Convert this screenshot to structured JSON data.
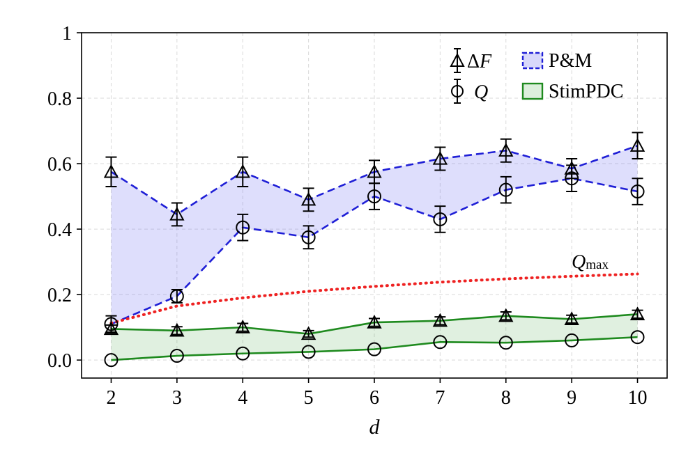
{
  "chart_data": {
    "type": "line",
    "x": [
      2,
      3,
      4,
      5,
      6,
      7,
      8,
      9,
      10
    ],
    "xlabel": "d",
    "ylabel": "",
    "xlim": [
      1.55,
      10.45
    ],
    "ylim": [
      -0.055,
      1.0
    ],
    "xticks": [
      "2",
      "3",
      "4",
      "5",
      "6",
      "7",
      "8",
      "9",
      "10"
    ],
    "yticks": [
      {
        "value": 0.0,
        "label": "0.0"
      },
      {
        "value": 0.2,
        "label": "0.2"
      },
      {
        "value": 0.4,
        "label": "0.4"
      },
      {
        "value": 0.6,
        "label": "0.6"
      },
      {
        "value": 0.8,
        "label": "0.8"
      },
      {
        "value": 1.0,
        "label": "1"
      }
    ],
    "grid": true,
    "series": [
      {
        "group": "P&M",
        "name": "ΔF",
        "marker": "triangle",
        "color": "#1f1fd6",
        "linestyle": "dashed",
        "values": [
          0.575,
          0.445,
          0.575,
          0.49,
          0.575,
          0.615,
          0.64,
          0.585,
          0.655
        ],
        "errors": [
          0.045,
          0.035,
          0.045,
          0.035,
          0.035,
          0.035,
          0.035,
          0.03,
          0.04
        ]
      },
      {
        "group": "P&M",
        "name": "Q",
        "marker": "circle",
        "color": "#1f1fd6",
        "linestyle": "dashed",
        "values": [
          0.11,
          0.195,
          0.405,
          0.375,
          0.5,
          0.43,
          0.52,
          0.555,
          0.515
        ],
        "errors": [
          0.025,
          0.02,
          0.04,
          0.035,
          0.04,
          0.04,
          0.04,
          0.04,
          0.04
        ]
      },
      {
        "group": "StimPDC",
        "name": "ΔF",
        "marker": "triangle",
        "color": "#1e8a1e",
        "linestyle": "solid",
        "values": [
          0.095,
          0.09,
          0.1,
          0.08,
          0.115,
          0.12,
          0.135,
          0.125,
          0.14
        ],
        "errors": [
          0.012,
          0.012,
          0.012,
          0.01,
          0.012,
          0.012,
          0.012,
          0.012,
          0.012
        ]
      },
      {
        "group": "StimPDC",
        "name": "Q",
        "marker": "circle",
        "color": "#1e8a1e",
        "linestyle": "solid",
        "values": [
          0.0,
          0.013,
          0.02,
          0.025,
          0.033,
          0.055,
          0.053,
          0.06,
          0.07
        ],
        "errors": [
          0.0,
          0.0,
          0.0,
          0.0,
          0.0,
          0.0,
          0.0,
          0.0,
          0.0
        ]
      },
      {
        "name": "Qmax",
        "color": "#ee2222",
        "linestyle": "dotted",
        "x": [
          2,
          3,
          4,
          5,
          6,
          7,
          8,
          9,
          10
        ],
        "values": [
          0.113,
          0.165,
          0.19,
          0.21,
          0.225,
          0.238,
          0.248,
          0.256,
          0.263
        ]
      }
    ],
    "fills": [
      {
        "name": "P&M",
        "color": "#6b6bf0",
        "opacity": 0.22,
        "upper": "P&M ΔF",
        "lower": "P&M Q"
      },
      {
        "name": "StimPDC",
        "color": "#2f9a2f",
        "opacity": 0.15,
        "upper": "StimPDC ΔF",
        "lower": "StimPDC Q"
      }
    ],
    "legend": {
      "placement": "top-right",
      "marker_entries": [
        {
          "symbol": "triangle",
          "label_prefix": "Δ",
          "label": "F"
        },
        {
          "symbol": "circle",
          "label_prefix": "",
          "label": "Q"
        }
      ],
      "fill_entries": [
        {
          "label": "P&M",
          "edge": "#1f1fd6",
          "face": "#d8d8fa",
          "dash": true
        },
        {
          "label": "StimPDC",
          "edge": "#1e8a1e",
          "face": "#dcefdc",
          "dash": false
        }
      ]
    },
    "annotation": {
      "main": "Q",
      "sub": "max"
    }
  }
}
